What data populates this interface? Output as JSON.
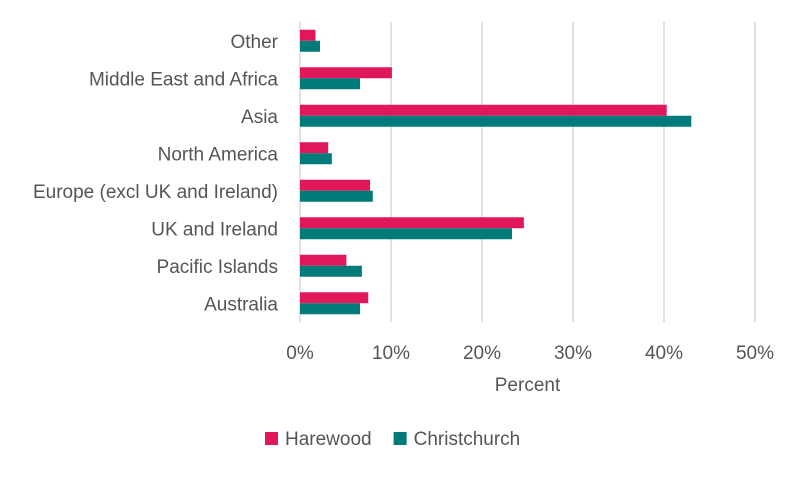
{
  "chart_data": {
    "type": "bar",
    "orientation": "horizontal",
    "categories": [
      "Other",
      "Middle East and Africa",
      "Asia",
      "North America",
      "Europe (excl UK and Ireland)",
      "UK and Ireland",
      "Pacific Islands",
      "Australia"
    ],
    "series": [
      {
        "name": "Harewood",
        "color": "#e0185a",
        "values": [
          1.7,
          10.1,
          40.3,
          3.1,
          7.7,
          24.6,
          5.1,
          7.5
        ]
      },
      {
        "name": "Christchurch",
        "color": "#007b7a",
        "values": [
          2.2,
          6.6,
          43.0,
          3.5,
          8.0,
          23.3,
          6.8,
          6.6
        ]
      }
    ],
    "xlabel": "Percent",
    "xlim": [
      0,
      50
    ],
    "xticks": [
      0,
      10,
      20,
      30,
      40,
      50
    ],
    "tick_suffix": "%",
    "grid": true,
    "legend_position": "bottom"
  }
}
